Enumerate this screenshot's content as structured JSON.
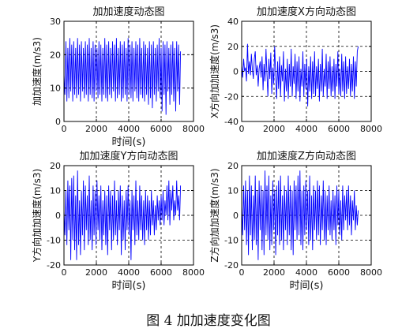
{
  "caption": "图 4  加加速度变化图",
  "chart_data": [
    {
      "type": "line",
      "title": "加加速度动态图",
      "ylabel": "加加速度(m/s3)",
      "xlabel": "时间(s)",
      "xlim": [
        0,
        8000
      ],
      "ylim": [
        0,
        30
      ],
      "xticks": [
        "0",
        "2000",
        "4000",
        "6000",
        "8000"
      ],
      "yticks": [
        "0",
        "10",
        "20",
        "30"
      ],
      "grid": true,
      "color": "#0000ff",
      "series": [
        {
          "x": [
            0,
            60,
            120,
            180,
            240,
            300,
            360,
            420,
            480,
            540,
            600,
            660,
            720,
            780,
            840,
            900,
            960,
            1020,
            1080,
            1140,
            1200,
            1260,
            1320,
            1380,
            1440,
            1500,
            1560,
            1620,
            1680,
            1740,
            1800,
            1860,
            1920,
            1980,
            2040,
            2100,
            2160,
            2220,
            2280,
            2340,
            2400,
            2460,
            2520,
            2580,
            2640,
            2700,
            2760,
            2820,
            2880,
            2940,
            3000,
            3060,
            3120,
            3180,
            3240,
            3300,
            3360,
            3420,
            3480,
            3540,
            3600,
            3660,
            3720,
            3780,
            3840,
            3900,
            3960,
            4020,
            4080,
            4140,
            4200,
            4260,
            4320,
            4380,
            4440,
            4500,
            4560,
            4620,
            4680,
            4740,
            4800,
            4860,
            4920,
            4980,
            5040,
            5100,
            5160,
            5220,
            5280,
            5340,
            5400,
            5460,
            5520,
            5580,
            5640,
            5700,
            5760,
            5820,
            5880,
            5940,
            6000,
            6060,
            6120,
            6180,
            6240,
            6300,
            6360,
            6420,
            6480,
            6540,
            6600,
            6660,
            6720,
            6780,
            6840,
            6900,
            6960,
            7020,
            7080,
            7140,
            7200
          ],
          "y": [
            14,
            8,
            24,
            6,
            22,
            7,
            25,
            9,
            23,
            6,
            24,
            8,
            22,
            7,
            25,
            8,
            23,
            6,
            24,
            9,
            22,
            7,
            24,
            8,
            23,
            6,
            25,
            8,
            22,
            7,
            24,
            6,
            23,
            9,
            22,
            7,
            24,
            8,
            23,
            6,
            22,
            8,
            25,
            7,
            23,
            6,
            24,
            8,
            22,
            7,
            24,
            9,
            23,
            6,
            25,
            7,
            22,
            8,
            24,
            6,
            23,
            7,
            24,
            8,
            22,
            6,
            25,
            8,
            23,
            7,
            24,
            6,
            22,
            9,
            24,
            7,
            23,
            6,
            25,
            8,
            22,
            7,
            24,
            6,
            23,
            8,
            22,
            5,
            24,
            7,
            23,
            4,
            24,
            8,
            22,
            6,
            23,
            9,
            25,
            7,
            22,
            3,
            24,
            8,
            23,
            2,
            24,
            9,
            22,
            5,
            23,
            8,
            24,
            6,
            22,
            3,
            24,
            9,
            23,
            5,
            21
          ]
        }
      ]
    },
    {
      "type": "line",
      "title": "加加速度X方向动态图",
      "ylabel": "X方向加加速度(m/s3)",
      "xlabel": "",
      "xlim": [
        0,
        8000
      ],
      "ylim": [
        -40,
        40
      ],
      "xticks": [
        "0",
        "2000",
        "4000",
        "6000",
        "8000"
      ],
      "yticks": [
        "-40",
        "-20",
        "0",
        "20",
        "40"
      ],
      "grid": true,
      "color": "#0000ff",
      "series": [
        {
          "x": [
            0,
            60,
            120,
            180,
            240,
            300,
            360,
            420,
            480,
            540,
            600,
            660,
            720,
            780,
            840,
            900,
            960,
            1020,
            1080,
            1140,
            1200,
            1260,
            1320,
            1380,
            1440,
            1500,
            1560,
            1620,
            1680,
            1740,
            1800,
            1860,
            1920,
            1980,
            2040,
            2100,
            2160,
            2220,
            2280,
            2340,
            2400,
            2460,
            2520,
            2580,
            2640,
            2700,
            2760,
            2820,
            2880,
            2940,
            3000,
            3060,
            3120,
            3180,
            3240,
            3300,
            3360,
            3420,
            3480,
            3540,
            3600,
            3660,
            3720,
            3780,
            3840,
            3900,
            3960,
            4020,
            4080,
            4140,
            4200,
            4260,
            4320,
            4380,
            4440,
            4500,
            4560,
            4620,
            4680,
            4740,
            4800,
            4860,
            4920,
            4980,
            5040,
            5100,
            5160,
            5220,
            5280,
            5340,
            5400,
            5460,
            5520,
            5580,
            5640,
            5700,
            5760,
            5820,
            5880,
            5940,
            6000,
            6060,
            6120,
            6180,
            6240,
            6300,
            6360,
            6420,
            6480,
            6540,
            6600,
            6660,
            6720,
            6780,
            6840,
            6900,
            6960,
            7020,
            7080,
            7140,
            7200
          ],
          "y": [
            5,
            -5,
            10,
            0,
            3,
            -8,
            22,
            -2,
            8,
            -3,
            14,
            2,
            -6,
            10,
            16,
            -3,
            5,
            -12,
            2,
            8,
            -5,
            12,
            -15,
            6,
            -8,
            18,
            -2,
            -20,
            10,
            -6,
            15,
            -18,
            3,
            -10,
            20,
            -4,
            -22,
            8,
            -14,
            12,
            -20,
            5,
            -8,
            16,
            -24,
            2,
            -16,
            10,
            -22,
            6,
            -12,
            18,
            -20,
            4,
            -10,
            14,
            -22,
            8,
            -16,
            12,
            -24,
            2,
            -12,
            16,
            -20,
            6,
            -14,
            10,
            -28,
            4,
            -16,
            12,
            -22,
            8,
            -18,
            16,
            -20,
            4,
            -14,
            10,
            -24,
            6,
            -16,
            18,
            -20,
            2,
            -12,
            14,
            -22,
            8,
            -14,
            12,
            -20,
            4,
            -16,
            10,
            -22,
            6,
            -12,
            16,
            -18,
            2,
            -20,
            14,
            -16,
            8,
            -22,
            12,
            -18,
            4,
            -14,
            10,
            -20,
            6,
            -16,
            12,
            -22,
            8,
            -12,
            16,
            20
          ]
        }
      ]
    },
    {
      "type": "line",
      "title": "加加速度Y方向动态图",
      "ylabel": "Y方向加加速度(m/s3)",
      "xlabel": "时间(s)",
      "xlim": [
        0,
        8000
      ],
      "ylim": [
        -20,
        20
      ],
      "xticks": [
        "0",
        "2000",
        "4000",
        "6000",
        "8000"
      ],
      "yticks": [
        "-20",
        "-10",
        "0",
        "10",
        "20"
      ],
      "grid": true,
      "color": "#0000ff",
      "series": [
        {
          "x": [
            0,
            60,
            120,
            180,
            240,
            300,
            360,
            420,
            480,
            540,
            600,
            660,
            720,
            780,
            840,
            900,
            960,
            1020,
            1080,
            1140,
            1200,
            1260,
            1320,
            1380,
            1440,
            1500,
            1560,
            1620,
            1680,
            1740,
            1800,
            1860,
            1920,
            1980,
            2040,
            2100,
            2160,
            2220,
            2280,
            2340,
            2400,
            2460,
            2520,
            2580,
            2640,
            2700,
            2760,
            2820,
            2880,
            2940,
            3000,
            3060,
            3120,
            3180,
            3240,
            3300,
            3360,
            3420,
            3480,
            3540,
            3600,
            3660,
            3720,
            3780,
            3840,
            3900,
            3960,
            4020,
            4080,
            4140,
            4200,
            4260,
            4320,
            4380,
            4440,
            4500,
            4560,
            4620,
            4680,
            4740,
            4800,
            4860,
            4920,
            4980,
            5040,
            5100,
            5160,
            5220,
            5280,
            5340,
            5400,
            5460,
            5520,
            5580,
            5640,
            5700,
            5760,
            5820,
            5880,
            5940,
            6000,
            6060,
            6120,
            6180,
            6240,
            6300,
            6360,
            6420,
            6480,
            6540,
            6600,
            6660,
            6720,
            6780,
            6840,
            6900,
            6960,
            7020,
            7080,
            7140,
            7200
          ],
          "y": [
            2,
            -8,
            10,
            -12,
            14,
            -6,
            12,
            -18,
            15,
            -10,
            16,
            -14,
            8,
            -18,
            18,
            -12,
            6,
            -16,
            10,
            -8,
            14,
            -14,
            12,
            -6,
            8,
            -12,
            16,
            -10,
            6,
            -14,
            12,
            -8,
            10,
            -12,
            14,
            -6,
            8,
            -10,
            12,
            -14,
            6,
            -8,
            10,
            -12,
            8,
            -16,
            12,
            -6,
            10,
            -14,
            8,
            -10,
            14,
            -8,
            6,
            -12,
            10,
            -6,
            12,
            -16,
            8,
            -10,
            6,
            -14,
            10,
            -6,
            12,
            -8,
            6,
            -18,
            10,
            -6,
            8,
            -12,
            14,
            -8,
            6,
            -10,
            12,
            -6,
            8,
            -10,
            6,
            -12,
            10,
            -6,
            8,
            -10,
            6,
            -8,
            10,
            -4,
            6,
            -8,
            4,
            -6,
            8,
            -2,
            6,
            -4,
            8,
            -2,
            10,
            -4,
            6,
            0,
            12,
            -2,
            14,
            -4,
            10,
            2,
            12,
            -2,
            6,
            0,
            14,
            2,
            8,
            -2,
            12
          ]
        }
      ]
    },
    {
      "type": "line",
      "title": "加加速度Z方向动态图",
      "ylabel": "Z方向加加速度(m/s3)",
      "xlabel": "时间(s)",
      "xlim": [
        0,
        8000
      ],
      "ylim": [
        -20,
        20
      ],
      "xticks": [
        "0",
        "2000",
        "4000",
        "6000",
        "8000"
      ],
      "yticks": [
        "-20",
        "-10",
        "0",
        "10",
        "20"
      ],
      "grid": true,
      "color": "#0000ff",
      "series": [
        {
          "x": [
            0,
            60,
            120,
            180,
            240,
            300,
            360,
            420,
            480,
            540,
            600,
            660,
            720,
            780,
            840,
            900,
            960,
            1020,
            1080,
            1140,
            1200,
            1260,
            1320,
            1380,
            1440,
            1500,
            1560,
            1620,
            1680,
            1740,
            1800,
            1860,
            1920,
            1980,
            2040,
            2100,
            2160,
            2220,
            2280,
            2340,
            2400,
            2460,
            2520,
            2580,
            2640,
            2700,
            2760,
            2820,
            2880,
            2940,
            3000,
            3060,
            3120,
            3180,
            3240,
            3300,
            3360,
            3420,
            3480,
            3540,
            3600,
            3660,
            3720,
            3780,
            3840,
            3900,
            3960,
            4020,
            4080,
            4140,
            4200,
            4260,
            4320,
            4380,
            4440,
            4500,
            4560,
            4620,
            4680,
            4740,
            4800,
            4860,
            4920,
            4980,
            5040,
            5100,
            5160,
            5220,
            5280,
            5340,
            5400,
            5460,
            5520,
            5580,
            5640,
            5700,
            5760,
            5820,
            5880,
            5940,
            6000,
            6060,
            6120,
            6180,
            6240,
            6300,
            6360,
            6420,
            6480,
            6540,
            6600,
            6660,
            6720,
            6780,
            6840,
            6900,
            6960,
            7020,
            7080,
            7140,
            7200
          ],
          "y": [
            4,
            -8,
            12,
            -6,
            14,
            -12,
            10,
            -16,
            16,
            -8,
            12,
            -14,
            8,
            -10,
            16,
            -12,
            10,
            -18,
            14,
            -6,
            12,
            -14,
            10,
            -16,
            18,
            -8,
            12,
            -10,
            16,
            -14,
            8,
            -12,
            14,
            -6,
            10,
            -16,
            12,
            -8,
            14,
            -12,
            16,
            -10,
            8,
            -14,
            12,
            -6,
            10,
            -12,
            16,
            -8,
            12,
            -14,
            10,
            -16,
            14,
            -6,
            12,
            -10,
            16,
            -8,
            18,
            -12,
            10,
            -14,
            12,
            -8,
            14,
            -6,
            10,
            -12,
            16,
            -10,
            8,
            -14,
            12,
            -6,
            10,
            -10,
            14,
            -8,
            12,
            -12,
            8,
            -6,
            14,
            -10,
            10,
            -12,
            8,
            -6,
            12,
            -8,
            6,
            -10,
            10,
            -6,
            8,
            -12,
            12,
            -4,
            10,
            -8,
            6,
            -10,
            12,
            -6,
            8,
            -2,
            10,
            -6,
            12,
            -4,
            8,
            -8,
            6,
            -2,
            10,
            -6,
            4,
            -4,
            2
          ]
        }
      ]
    }
  ]
}
